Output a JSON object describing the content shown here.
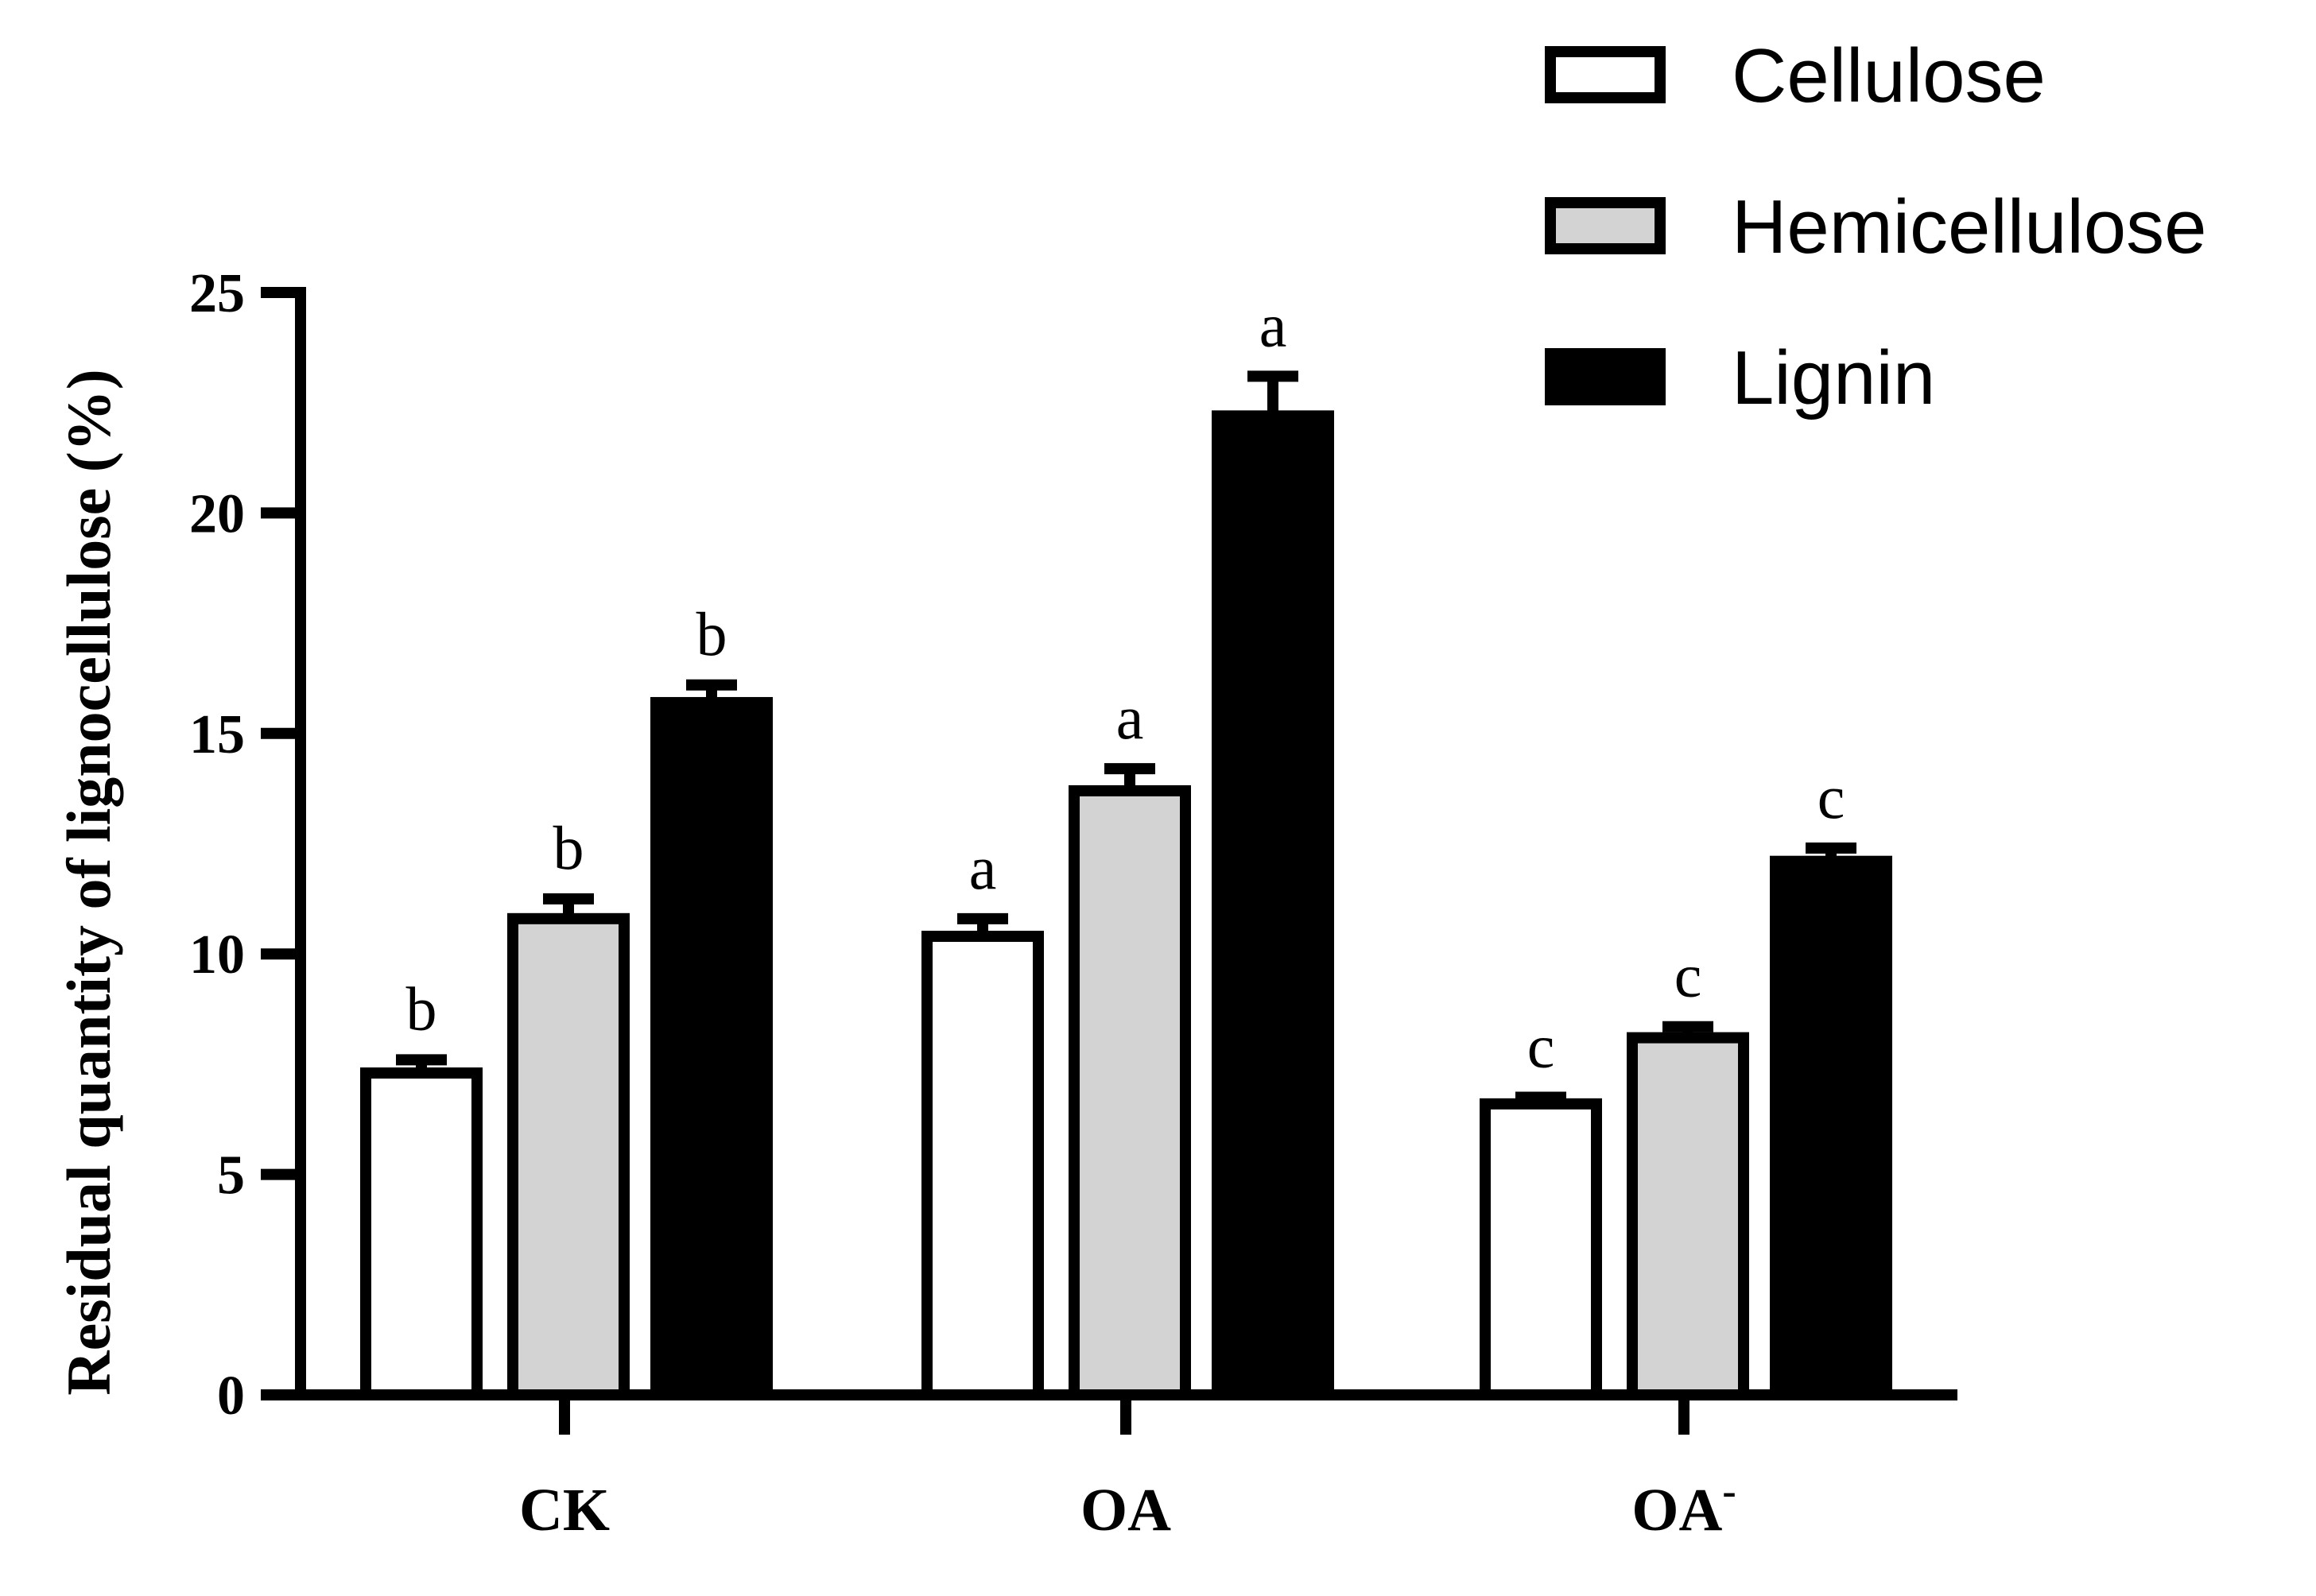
{
  "chart_data": {
    "type": "bar",
    "title": "",
    "xlabel": "",
    "ylabel": "Residual quantity of lignocellulose (%)",
    "ylim": [
      0,
      25
    ],
    "yticks": [
      0,
      5,
      10,
      15,
      20,
      25
    ],
    "categories": [
      {
        "main": "CK",
        "sup": ""
      },
      {
        "main": "OA",
        "sup": ""
      },
      {
        "main": "OA",
        "sup": "-"
      }
    ],
    "series": [
      {
        "name": "Cellulose",
        "color": "#ffffff",
        "values": [
          7.3,
          10.4,
          6.6
        ],
        "errors": [
          0.3,
          0.4,
          0.15
        ],
        "letters": [
          "b",
          "a",
          "c"
        ]
      },
      {
        "name": "Hemicellulose",
        "color": "#d3d3d3",
        "values": [
          10.8,
          13.7,
          8.1
        ],
        "errors": [
          0.45,
          0.5,
          0.25
        ],
        "letters": [
          "b",
          "a",
          "c"
        ]
      },
      {
        "name": "Lignin",
        "color": "#000000",
        "values": [
          15.7,
          22.2,
          12.1
        ],
        "errors": [
          0.4,
          0.9,
          0.3
        ],
        "letters": [
          "b",
          "a",
          "c"
        ]
      }
    ],
    "legend_position": "top-right",
    "grid": false,
    "error_bar_color": "#000000",
    "axis_color": "#000000"
  }
}
